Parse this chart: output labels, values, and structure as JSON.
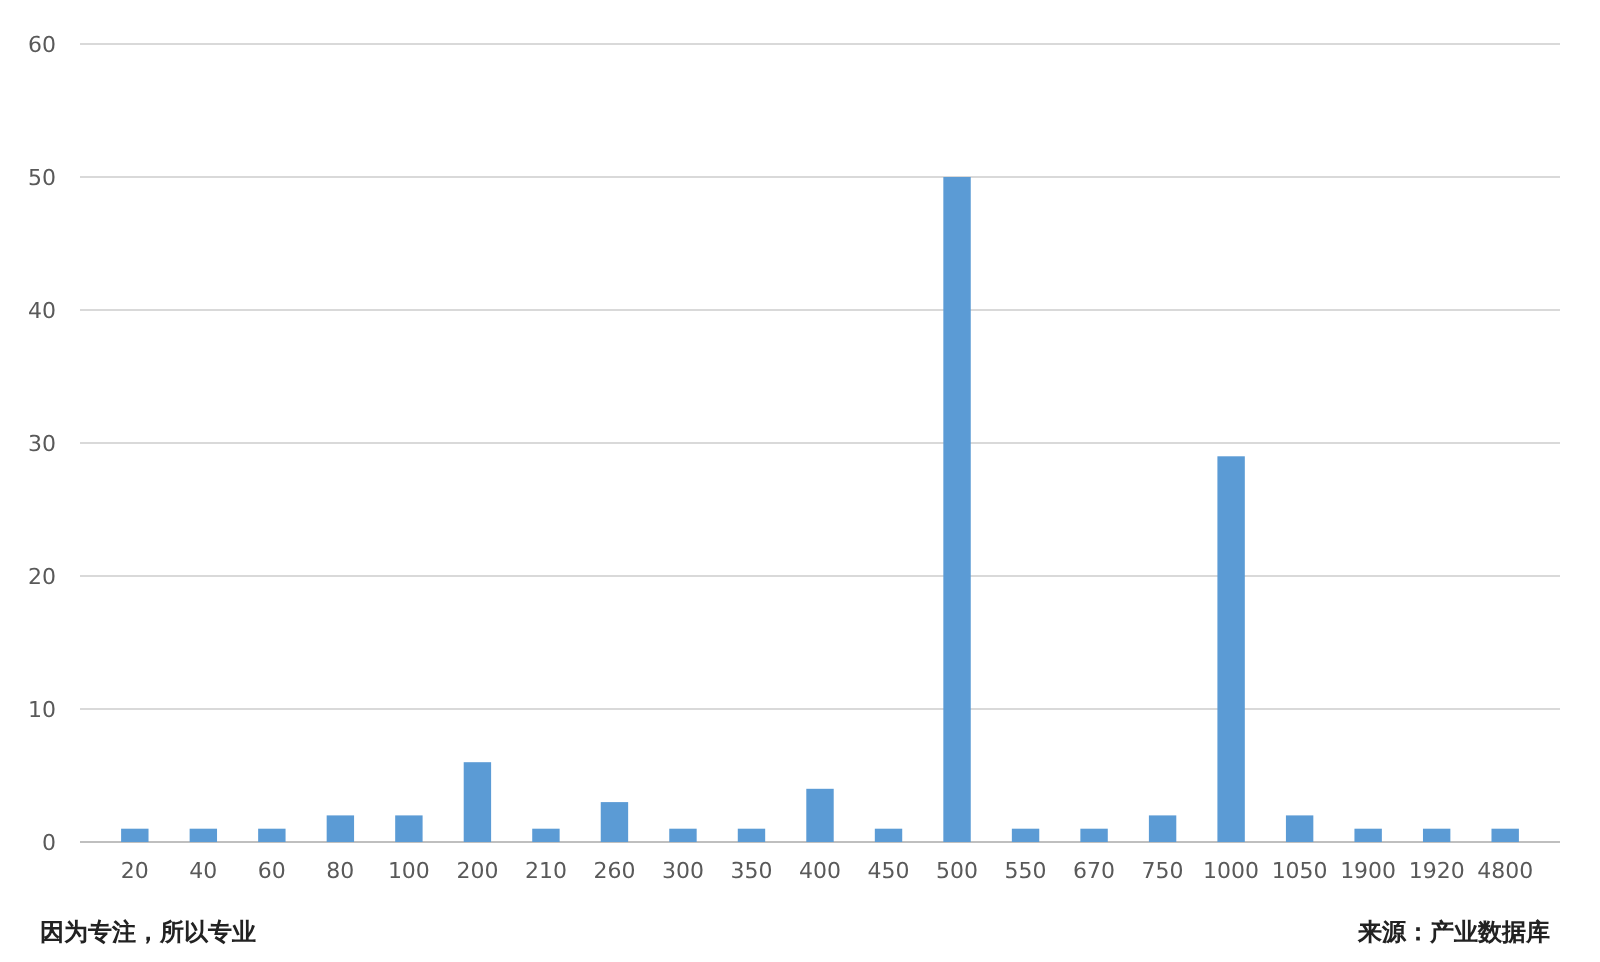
{
  "chart_data": {
    "type": "bar",
    "categories": [
      "20",
      "40",
      "60",
      "80",
      "100",
      "200",
      "210",
      "260",
      "300",
      "350",
      "400",
      "450",
      "500",
      "550",
      "670",
      "750",
      "1000",
      "1050",
      "1900",
      "1920",
      "4800"
    ],
    "values": [
      1,
      1,
      1,
      2,
      2,
      6,
      1,
      3,
      1,
      1,
      4,
      1,
      50,
      1,
      1,
      2,
      29,
      2,
      1,
      1,
      1
    ],
    "color": "#5b9bd5",
    "ylim": [
      0,
      60
    ],
    "yticks": [
      0,
      10,
      20,
      30,
      40,
      50,
      60
    ],
    "grid": "y",
    "annotations": [
      "因为专注，所以专业",
      "来源：产业数据库"
    ]
  }
}
